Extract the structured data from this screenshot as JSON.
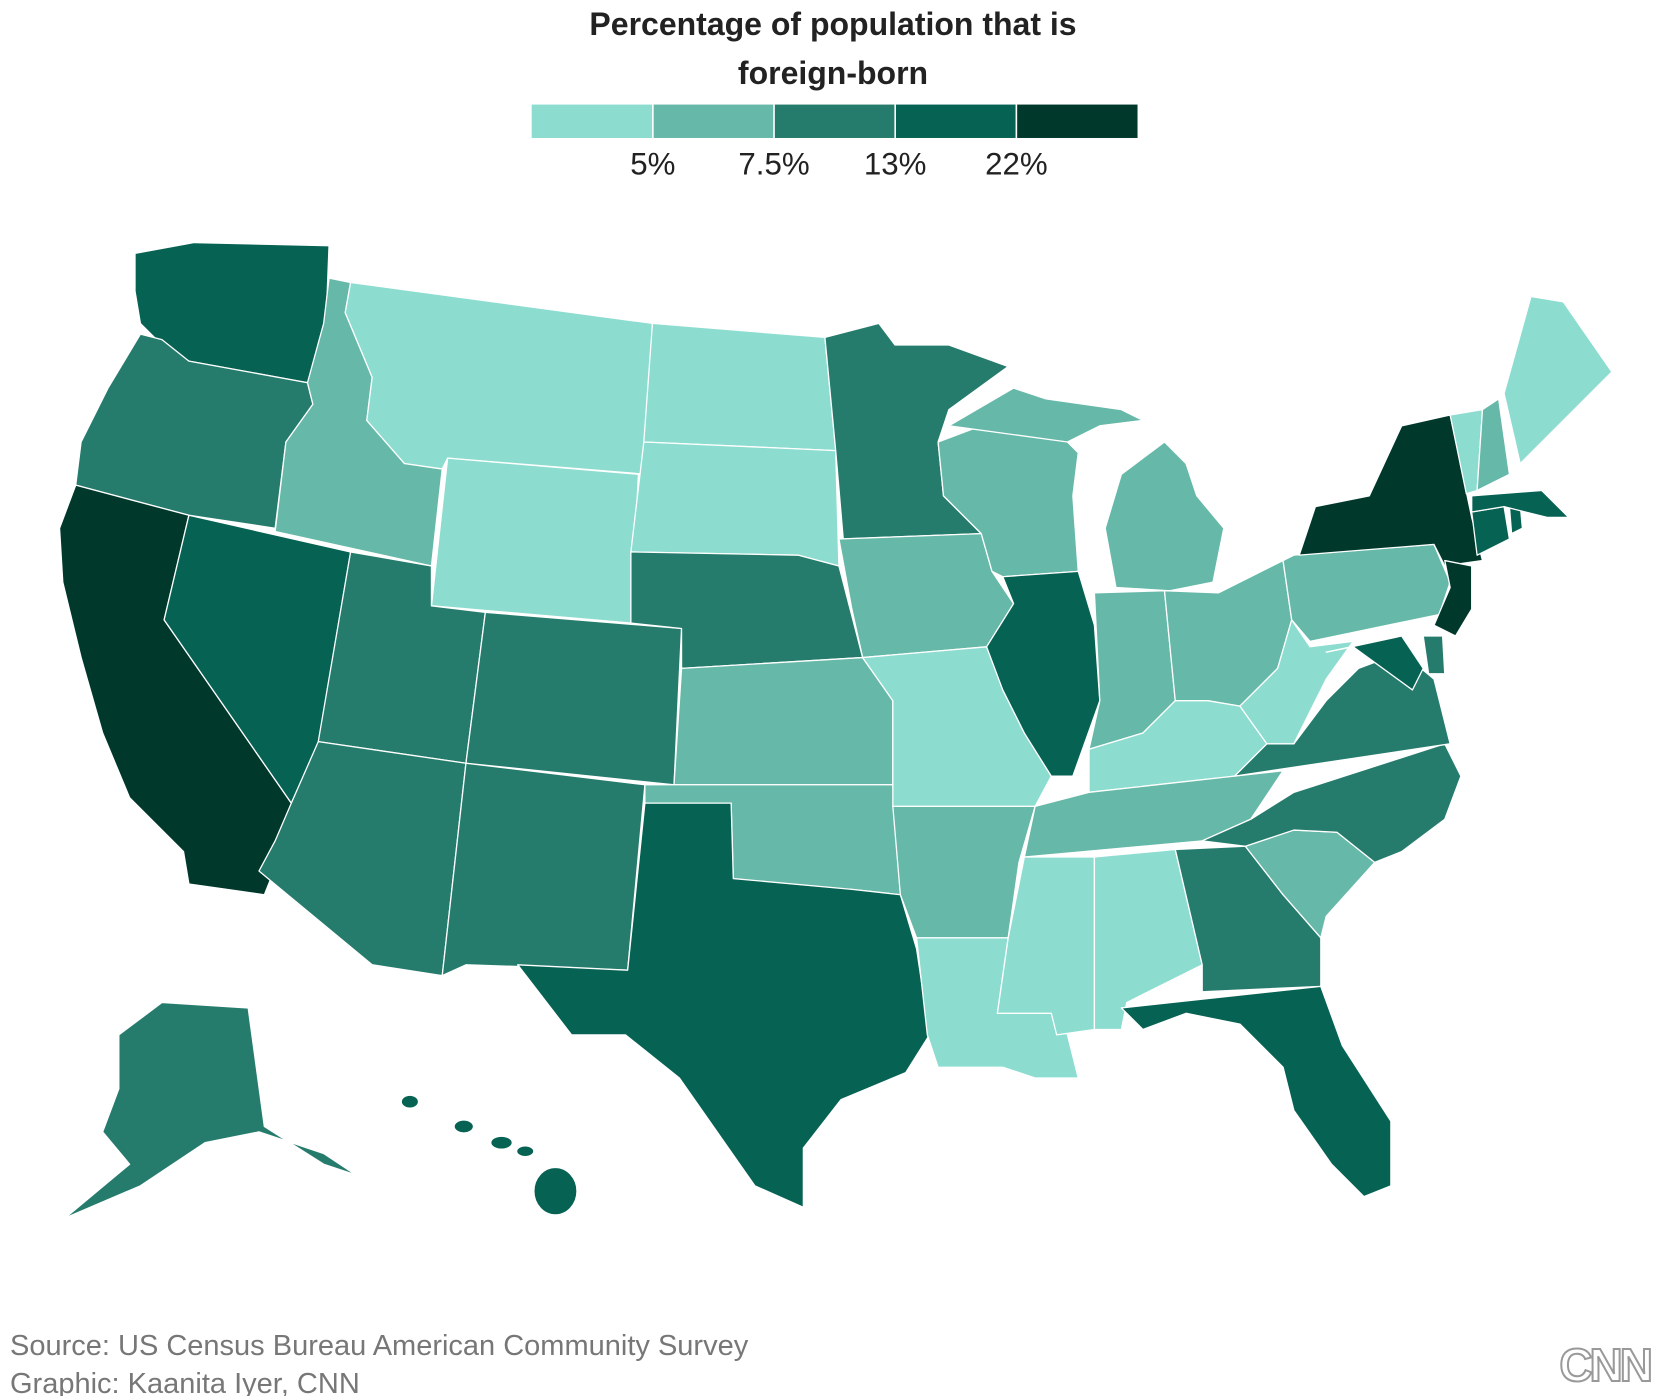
{
  "title": "Percentage of population that is foreign-born",
  "legend": {
    "colors": [
      "#8cdcd0",
      "#66b8a8",
      "#267c6c",
      "#066253",
      "#00392c"
    ],
    "ticks": [
      {
        "value": 5,
        "label": "5%"
      },
      {
        "value": 7.5,
        "label": "7.5%"
      },
      {
        "value": 13,
        "label": "13%"
      },
      {
        "value": 22,
        "label": "22%"
      }
    ]
  },
  "source": "Source: US Census Bureau American Community Survey",
  "credit": "Graphic: Kaanita Iyer, CNN",
  "logo": "CNN"
}
